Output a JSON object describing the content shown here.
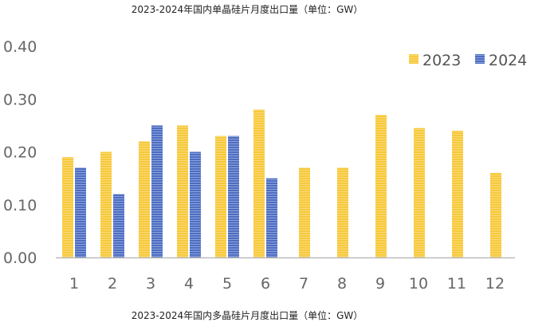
{
  "chart_data": {
    "type": "bar",
    "title": "2023-2024年国内单晶硅片月度出口量（单位：GW）",
    "footer_title": "2023-2024年国内多晶硅片月度出口量（单位：GW）",
    "xlabel": "",
    "ylabel": "",
    "ylim": [
      0,
      0.4
    ],
    "yticks": [
      "0.00",
      "0.10",
      "0.20",
      "0.30",
      "0.40"
    ],
    "categories": [
      "1",
      "2",
      "3",
      "4",
      "5",
      "6",
      "7",
      "8",
      "9",
      "10",
      "11",
      "12"
    ],
    "series": [
      {
        "name": "2023",
        "color": "#F5C431",
        "values": [
          0.19,
          0.2,
          0.22,
          0.25,
          0.23,
          0.28,
          0.17,
          0.17,
          0.27,
          0.245,
          0.24,
          0.16
        ]
      },
      {
        "name": "2024",
        "color": "#4A6BC0",
        "values": [
          0.17,
          0.12,
          0.25,
          0.2,
          0.23,
          0.15,
          null,
          null,
          null,
          null,
          null,
          null
        ]
      }
    ],
    "legend": "top-right",
    "grid": false
  }
}
